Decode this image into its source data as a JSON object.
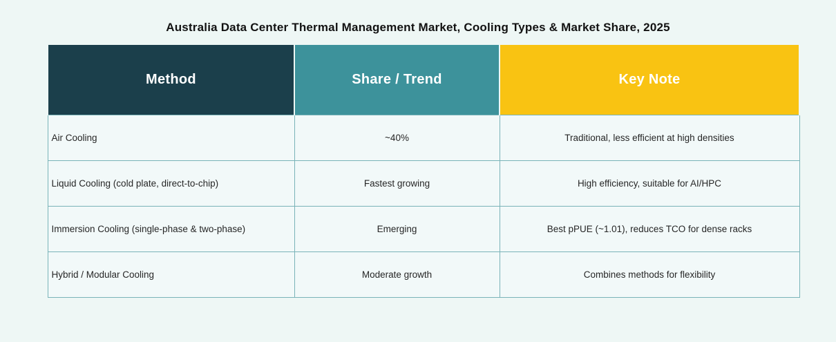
{
  "page": {
    "background": "#eef7f5",
    "border_color": "#79b3b8",
    "cell_background": "#f2f9f9"
  },
  "title": "Australia Data Center Thermal Management Market, Cooling Types & Market Share, 2025",
  "table": {
    "columns": [
      {
        "label": "Method",
        "color": "#1b3f4b"
      },
      {
        "label": "Share / Trend",
        "color": "#3d929b"
      },
      {
        "label": "Key Note",
        "color": "#f9c312"
      }
    ],
    "rows": [
      {
        "method": "Air Cooling",
        "share_trend": "~40%",
        "key_note": "Traditional, less efficient at high densities"
      },
      {
        "method": "Liquid Cooling (cold plate, direct-to-chip)",
        "share_trend": "Fastest growing",
        "key_note": "High efficiency, suitable for AI/HPC"
      },
      {
        "method": "Immersion Cooling (single-phase & two-phase)",
        "share_trend": "Emerging",
        "key_note": "Best pPUE (~1.01), reduces TCO for dense racks"
      },
      {
        "method": "Hybrid / Modular Cooling",
        "share_trend": "Moderate growth",
        "key_note": "Combines methods for flexibility"
      }
    ]
  },
  "chart_data": {
    "type": "table",
    "title": "Australia Data Center Thermal Management Market, Cooling Types & Market Share, 2025",
    "columns": [
      "Method",
      "Share / Trend",
      "Key Note"
    ],
    "rows": [
      [
        "Air Cooling",
        "~40%",
        "Traditional, less efficient at high densities"
      ],
      [
        "Liquid Cooling (cold plate, direct-to-chip)",
        "Fastest growing",
        "High efficiency, suitable for AI/HPC"
      ],
      [
        "Immersion Cooling (single-phase & two-phase)",
        "Emerging",
        "Best pPUE (~1.01), reduces TCO for dense racks"
      ],
      [
        "Hybrid / Modular Cooling",
        "Moderate growth",
        "Combines methods for flexibility"
      ]
    ],
    "header_colors": [
      "#1b3f4b",
      "#3d929b",
      "#f9c312"
    ],
    "legend_position": "none",
    "grid": true
  }
}
